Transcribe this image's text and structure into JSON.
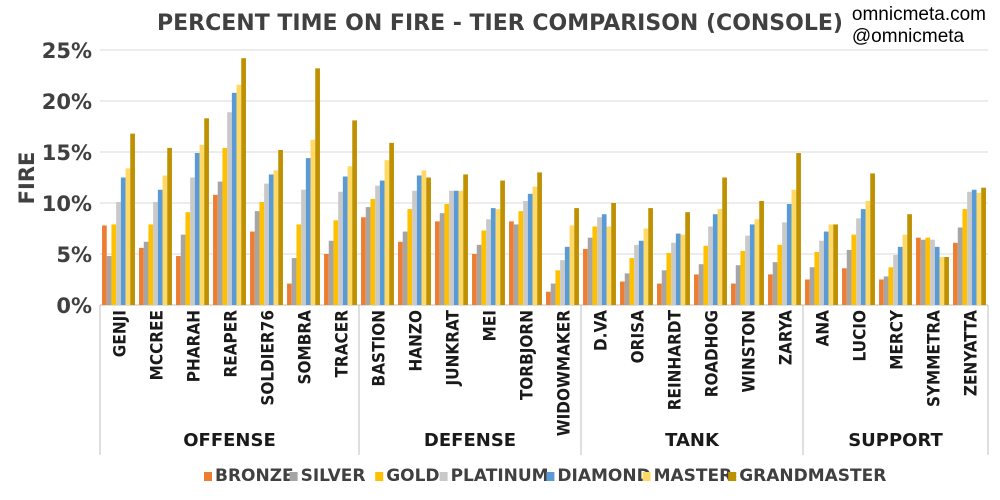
{
  "brand": {
    "site": "omnicmeta.com",
    "handle": "@omnicmeta"
  },
  "chart_data": {
    "type": "bar",
    "title": "PERCENT TIME ON FIRE - TIER COMPARISON (CONSOLE)",
    "ylabel": "FIRE",
    "xlabel": "",
    "ylim": [
      0,
      25
    ],
    "yticks": [
      "0%",
      "5%",
      "10%",
      "15%",
      "20%",
      "25%"
    ],
    "grid": true,
    "legend_position": "bottom",
    "categories": [
      "GENJI",
      "MCCREE",
      "PHARAH",
      "REAPER",
      "SOLDIER76",
      "SOMBRA",
      "TRACER",
      "BASTION",
      "HANZO",
      "JUNKRAT",
      "MEI",
      "TORBJORN",
      "WIDOWMAKER",
      "D.VA",
      "ORISA",
      "REINHARDT",
      "ROADHOG",
      "WINSTON",
      "ZARYA",
      "ANA",
      "LUCIO",
      "MERCY",
      "SYMMETRA",
      "ZENYATTA"
    ],
    "groups": [
      {
        "name": "OFFENSE",
        "count": 7
      },
      {
        "name": "DEFENSE",
        "count": 6
      },
      {
        "name": "TANK",
        "count": 6
      },
      {
        "name": "SUPPORT",
        "count": 5
      }
    ],
    "series": [
      {
        "name": "BRONZE",
        "color": "#ED7D31",
        "values": [
          7.8,
          5.6,
          4.8,
          10.8,
          7.2,
          2.1,
          5.0,
          8.6,
          6.2,
          8.2,
          5.0,
          8.2,
          1.3,
          5.5,
          2.3,
          2.1,
          3.0,
          2.1,
          3.0,
          2.5,
          3.6,
          2.5,
          6.6,
          6.1
        ]
      },
      {
        "name": "SILVER",
        "color": "#A5A5A5",
        "values": [
          4.8,
          6.2,
          6.9,
          12.1,
          9.2,
          4.6,
          6.3,
          9.6,
          7.2,
          9.0,
          5.9,
          7.9,
          2.1,
          6.6,
          3.1,
          3.4,
          4.0,
          3.9,
          4.2,
          3.7,
          5.4,
          2.8,
          6.4,
          7.6
        ]
      },
      {
        "name": "GOLD",
        "color": "#FFC000",
        "values": [
          7.9,
          7.9,
          9.1,
          15.4,
          10.1,
          7.9,
          8.3,
          10.4,
          9.4,
          9.9,
          7.3,
          9.2,
          3.4,
          7.7,
          4.6,
          5.1,
          5.8,
          5.3,
          5.9,
          5.2,
          6.9,
          3.7,
          6.6,
          9.4
        ]
      },
      {
        "name": "PLATINUM",
        "color": "#C9C9C9",
        "values": [
          10.1,
          10.1,
          12.5,
          18.9,
          11.9,
          11.3,
          11.1,
          11.7,
          11.2,
          11.2,
          8.4,
          10.2,
          4.4,
          8.6,
          5.9,
          6.1,
          7.7,
          6.8,
          8.1,
          6.3,
          8.5,
          4.9,
          6.4,
          11.1
        ]
      },
      {
        "name": "DIAMOND",
        "color": "#5B9BD5",
        "values": [
          12.5,
          11.3,
          14.9,
          20.8,
          12.8,
          14.4,
          12.6,
          12.2,
          12.7,
          11.2,
          9.5,
          10.9,
          5.7,
          8.9,
          6.3,
          7.0,
          8.9,
          7.9,
          9.9,
          7.2,
          9.4,
          5.7,
          5.7,
          11.3
        ]
      },
      {
        "name": "MASTER",
        "color": "#FFD966",
        "values": [
          13.4,
          12.7,
          15.7,
          21.6,
          13.2,
          16.2,
          13.6,
          14.2,
          13.2,
          11.2,
          9.4,
          11.6,
          7.8,
          7.7,
          7.5,
          6.9,
          9.4,
          8.4,
          11.3,
          7.9,
          10.2,
          6.9,
          4.7,
          11.0
        ]
      },
      {
        "name": "GRANDMASTER",
        "color": "#BF9000",
        "values": [
          16.8,
          15.4,
          18.3,
          24.2,
          15.2,
          23.2,
          18.1,
          15.9,
          12.5,
          12.8,
          12.2,
          13.0,
          9.5,
          10.0,
          9.5,
          9.1,
          12.5,
          10.2,
          14.9,
          7.9,
          12.9,
          8.9,
          4.7,
          11.5
        ]
      }
    ]
  }
}
